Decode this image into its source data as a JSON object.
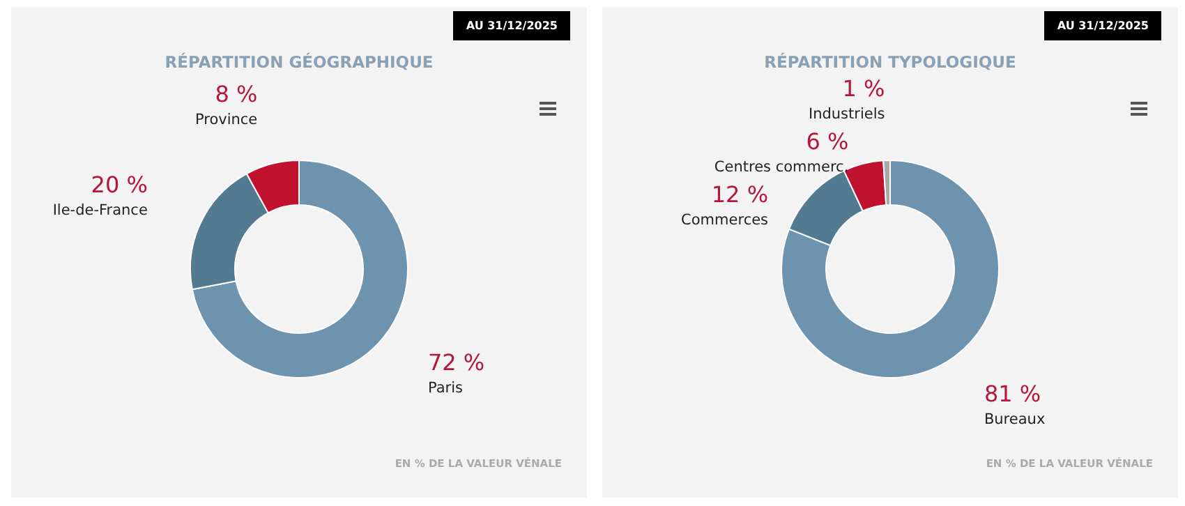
{
  "chart_data": [
    {
      "type": "donut",
      "title": "RÉPARTITION GÉOGRAPHIQUE",
      "categories": [
        "Paris",
        "Ile-de-France",
        "Province"
      ],
      "values": [
        72,
        20,
        8
      ],
      "colors": [
        "#6e93ae",
        "#527a90",
        "#c0112f"
      ],
      "value_labels": [
        "72 %",
        "20 %",
        "8 %"
      ],
      "annotations": [
        "AU 31/12/2025",
        "EN % DE LA VALEUR VÉNALE"
      ]
    },
    {
      "type": "donut",
      "title": "RÉPARTITION TYPOLOGIQUE",
      "categories": [
        "Bureaux",
        "Commerces",
        "Centres commerc.",
        "Industriels"
      ],
      "values": [
        81,
        12,
        6,
        1
      ],
      "colors": [
        "#6e93ae",
        "#527a90",
        "#c0112f",
        "#a8a8a8"
      ],
      "value_labels": [
        "81 %",
        "12 %",
        "6 %",
        "1 %"
      ],
      "annotations": [
        "AU 31/12/2025",
        "EN % DE LA VALEUR VÉNALE"
      ]
    }
  ]
}
